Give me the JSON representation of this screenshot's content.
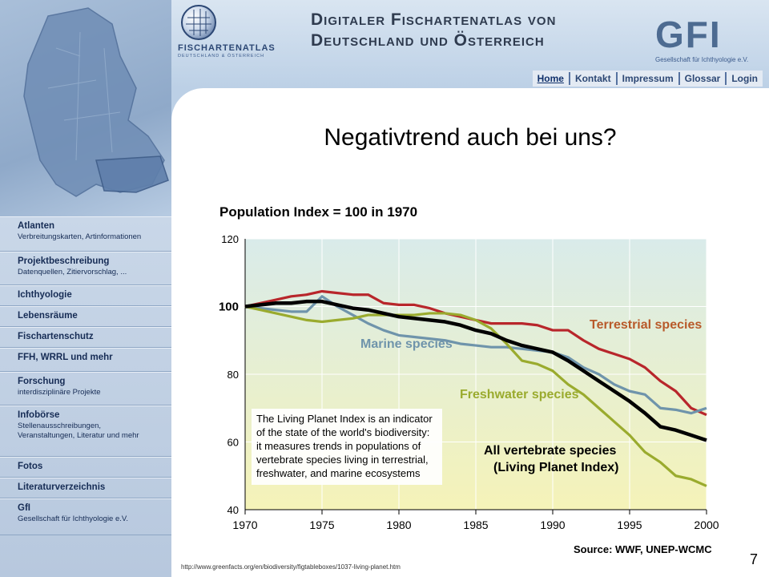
{
  "header": {
    "logo_text": "FISCHARTENATLAS",
    "logo_sub": "DEUTSCHLAND & ÖSTERREICH",
    "title_line1": "Digitaler Fischartenatlas von",
    "title_line2": "Deutschland und Österreich",
    "gfi_logo": "GFI",
    "gfi_sub": "Gesellschaft für Ichthyologie e.V."
  },
  "top_nav": [
    "Home",
    "Kontakt",
    "Impressum",
    "Glossar",
    "Login"
  ],
  "sidebar": {
    "items": [
      {
        "title": "Atlanten",
        "sub": "Verbreitungskarten, Artinformationen"
      },
      {
        "title": "Projektbeschreibung",
        "sub": "Datenquellen, Zitiervorschlag, ..."
      },
      {
        "title": "Ichthyologie",
        "sub": ""
      },
      {
        "title": "Lebensräume",
        "sub": ""
      },
      {
        "title": "Fischartenschutz",
        "sub": ""
      },
      {
        "title": "FFH, WRRL und mehr",
        "sub": ""
      },
      {
        "title": "Forschung",
        "sub": "interdisziplinäre Projekte"
      },
      {
        "title": "Infobörse",
        "sub": "Stellenausschreibungen,",
        "sub2": "Veranstaltungen, Literatur und mehr"
      },
      {
        "title": "Fotos",
        "sub": ""
      },
      {
        "title": "Literaturverzeichnis",
        "sub": ""
      },
      {
        "title": "GfI",
        "sub": "Gesellschaft für Ichthyologie e.V."
      }
    ]
  },
  "slide": {
    "title": "Negativtrend auch bei uns?",
    "page_number": "7",
    "source_url": "http://www.greenfacts.org/en/biodiversity/figtableboxes/1037-living-planet.htm"
  },
  "colors": {
    "terrestrial": "#b8262b",
    "marine": "#6f94ab",
    "freshwater": "#9aab2e",
    "all": "#000000",
    "chart_bg_top": "#d9ebea",
    "chart_bg_bottom": "#f5f3b8"
  },
  "chart_data": {
    "type": "line",
    "title": "Population Index = 100 in 1970",
    "xlabel": "",
    "ylabel": "",
    "xlim": [
      1970,
      2000
    ],
    "ylim": [
      40,
      120
    ],
    "xticks": [
      1970,
      1975,
      1980,
      1985,
      1990,
      1995,
      2000
    ],
    "yticks": [
      40,
      60,
      80,
      100,
      120
    ],
    "grid": true,
    "source": "Source: WWF, UNEP-WCMC",
    "annotation": [
      "The Living Planet Index is an indicator",
      "of the state of the world's biodiversity:",
      "it measures trends in populations of",
      "vertebrate species living in terrestrial,",
      "freshwater, and marine ecosystems"
    ],
    "x": [
      1970,
      1971,
      1972,
      1973,
      1974,
      1975,
      1976,
      1977,
      1978,
      1979,
      1980,
      1981,
      1982,
      1983,
      1984,
      1985,
      1986,
      1987,
      1988,
      1989,
      1990,
      1991,
      1992,
      1993,
      1994,
      1995,
      1996,
      1997,
      1998,
      1999,
      2000
    ],
    "series": [
      {
        "name": "Terrestrial species",
        "values": [
          100,
          101,
          102,
          103,
          103.5,
          104.5,
          104,
          103.5,
          103.5,
          101,
          100.5,
          100.5,
          99.5,
          98,
          97,
          96,
          95,
          95,
          95,
          94.5,
          93,
          93,
          90,
          87.5,
          86,
          84.5,
          82,
          78,
          75,
          70,
          68
        ]
      },
      {
        "name": "Marine species",
        "values": [
          100,
          99.5,
          99,
          98.5,
          98.5,
          103,
          100,
          97.5,
          95,
          93,
          91.5,
          91,
          90.5,
          90,
          89,
          88.5,
          88,
          88,
          87.5,
          87,
          86.5,
          85,
          82,
          80,
          77,
          75,
          74,
          70,
          69.5,
          68.5,
          70
        ]
      },
      {
        "name": "Freshwater species",
        "values": [
          100,
          99,
          98,
          97,
          96,
          95.5,
          96,
          96.5,
          97.5,
          97.5,
          97.5,
          97.5,
          98,
          98,
          97.5,
          96,
          93.5,
          89,
          84,
          83,
          81,
          77,
          74,
          70,
          66,
          62,
          57,
          54,
          50,
          49,
          47
        ]
      },
      {
        "name": "All vertebrate species (Living Planet Index)",
        "values": [
          100,
          100.5,
          101,
          101,
          101.5,
          101.5,
          100.5,
          99.5,
          99,
          98,
          97,
          96.5,
          96,
          95.5,
          94.5,
          93,
          92,
          90,
          88.5,
          87.5,
          86.5,
          84,
          81,
          78,
          75,
          72,
          68.5,
          64.5,
          63.5,
          62,
          60.5
        ]
      }
    ],
    "series_label_lines": {
      "Terrestrial species": [
        "Terrestrial species"
      ],
      "Marine species": [
        "Marine species"
      ],
      "Freshwater species": [
        "Freshwater species"
      ],
      "All vertebrate species (Living Planet Index)": [
        "All vertebrate species",
        "(Living Planet Index)"
      ]
    }
  }
}
